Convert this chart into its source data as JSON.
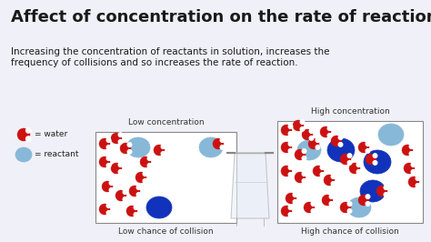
{
  "title": "Affect of concentration on the rate of reaction",
  "subtitle": "Increasing the concentration of reactants in solution, increases the\nfrequency of collisions and so increases the rate of reaction.",
  "bg_color": "#f0f0f8",
  "title_color": "#1a1a1a",
  "subtitle_color": "#1a1a1a",
  "box1_label_top": "Low concentration",
  "box1_label_bottom": "Low chance of collision",
  "box2_label_top": "High concentration",
  "box2_label_bottom": "High chance of collision",
  "box_edge_color": "#888888",
  "box_face_color": "#ffffff",
  "water_color": "#cc1111",
  "water_edge_color": "#aa0000",
  "reactant_light_color": "#88b8d8",
  "reactant_dark_color": "#1133bb",
  "legend_water_color": "#cc1111",
  "legend_reactant_color": "#88b8d8"
}
